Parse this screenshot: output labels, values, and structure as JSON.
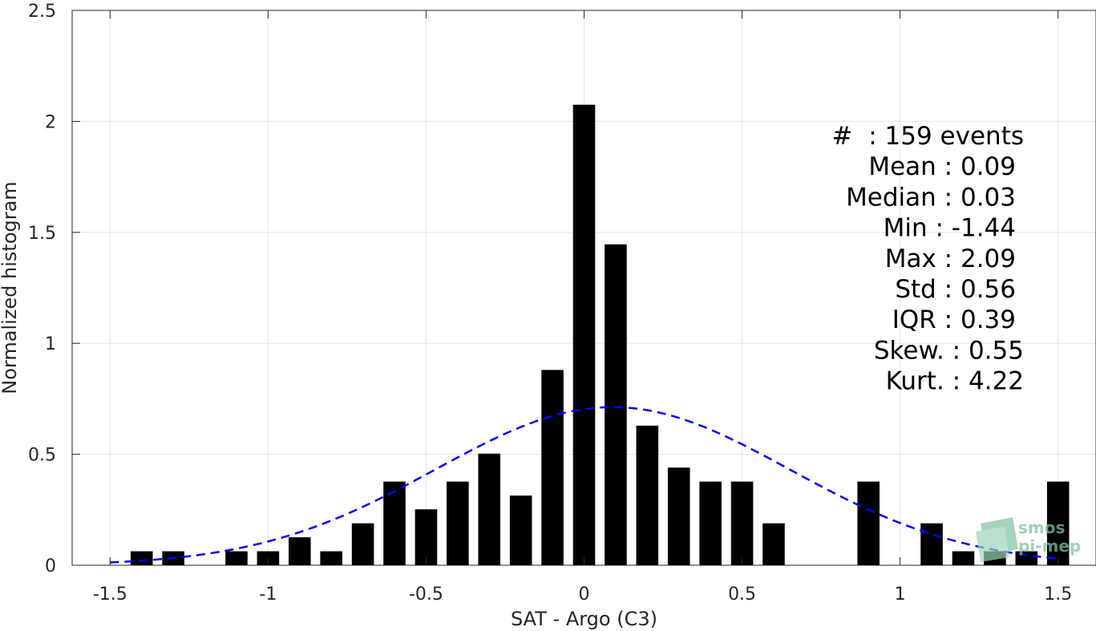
{
  "chart_data": {
    "type": "bar",
    "xlabel": "SAT - Argo (C3)",
    "ylabel": "Normalized histogram",
    "xlim": [
      -1.62,
      1.62
    ],
    "ylim": [
      0,
      2.5
    ],
    "xticks": [
      -1.5,
      -1,
      -0.5,
      0,
      0.5,
      1,
      1.5
    ],
    "xtick_labels": [
      "-1.5",
      "-1",
      "-0.5",
      "0",
      "0.5",
      "1",
      "1.5"
    ],
    "yticks": [
      0,
      0.5,
      1,
      1.5,
      2,
      2.5
    ],
    "ytick_labels": [
      "0",
      "0.5",
      "1",
      "1.5",
      "2",
      "2.5"
    ],
    "grid": true,
    "bar_width": 0.07,
    "bar_color": "#000000",
    "bins": [
      {
        "x": -1.4,
        "y": 0.063
      },
      {
        "x": -1.3,
        "y": 0.063
      },
      {
        "x": -1.1,
        "y": 0.063
      },
      {
        "x": -1.0,
        "y": 0.063
      },
      {
        "x": -0.9,
        "y": 0.126
      },
      {
        "x": -0.8,
        "y": 0.063
      },
      {
        "x": -0.7,
        "y": 0.189
      },
      {
        "x": -0.6,
        "y": 0.377
      },
      {
        "x": -0.5,
        "y": 0.252
      },
      {
        "x": -0.4,
        "y": 0.377
      },
      {
        "x": -0.3,
        "y": 0.503
      },
      {
        "x": -0.2,
        "y": 0.314
      },
      {
        "x": -0.1,
        "y": 0.88
      },
      {
        "x": 0.0,
        "y": 2.075
      },
      {
        "x": 0.1,
        "y": 1.446
      },
      {
        "x": 0.2,
        "y": 0.629
      },
      {
        "x": 0.3,
        "y": 0.44
      },
      {
        "x": 0.4,
        "y": 0.377
      },
      {
        "x": 0.5,
        "y": 0.377
      },
      {
        "x": 0.6,
        "y": 0.189
      },
      {
        "x": 0.9,
        "y": 0.377
      },
      {
        "x": 1.1,
        "y": 0.189
      },
      {
        "x": 1.2,
        "y": 0.063
      },
      {
        "x": 1.3,
        "y": 0.063
      },
      {
        "x": 1.4,
        "y": 0.063
      },
      {
        "x": 1.5,
        "y": 0.377
      }
    ],
    "fit": {
      "type": "gaussian",
      "mean": 0.09,
      "std": 0.56,
      "x_range": [
        -1.5,
        1.5
      ],
      "color": "#0000ff",
      "style": "dashed"
    },
    "stats_lines": [
      "#  : 159 events",
      "Mean : 0.09",
      "Median : 0.03",
      "Min : -1.44",
      "Max : 2.09",
      "Std : 0.56",
      "IQR : 0.39",
      "Skew. : 0.55",
      "Kurt. : 4.22"
    ],
    "stats_placement": "top-right",
    "watermark": {
      "line1": "smos",
      "line2": "pi-mep",
      "color": "#7fc3a0",
      "placement": "bottom-right"
    }
  }
}
